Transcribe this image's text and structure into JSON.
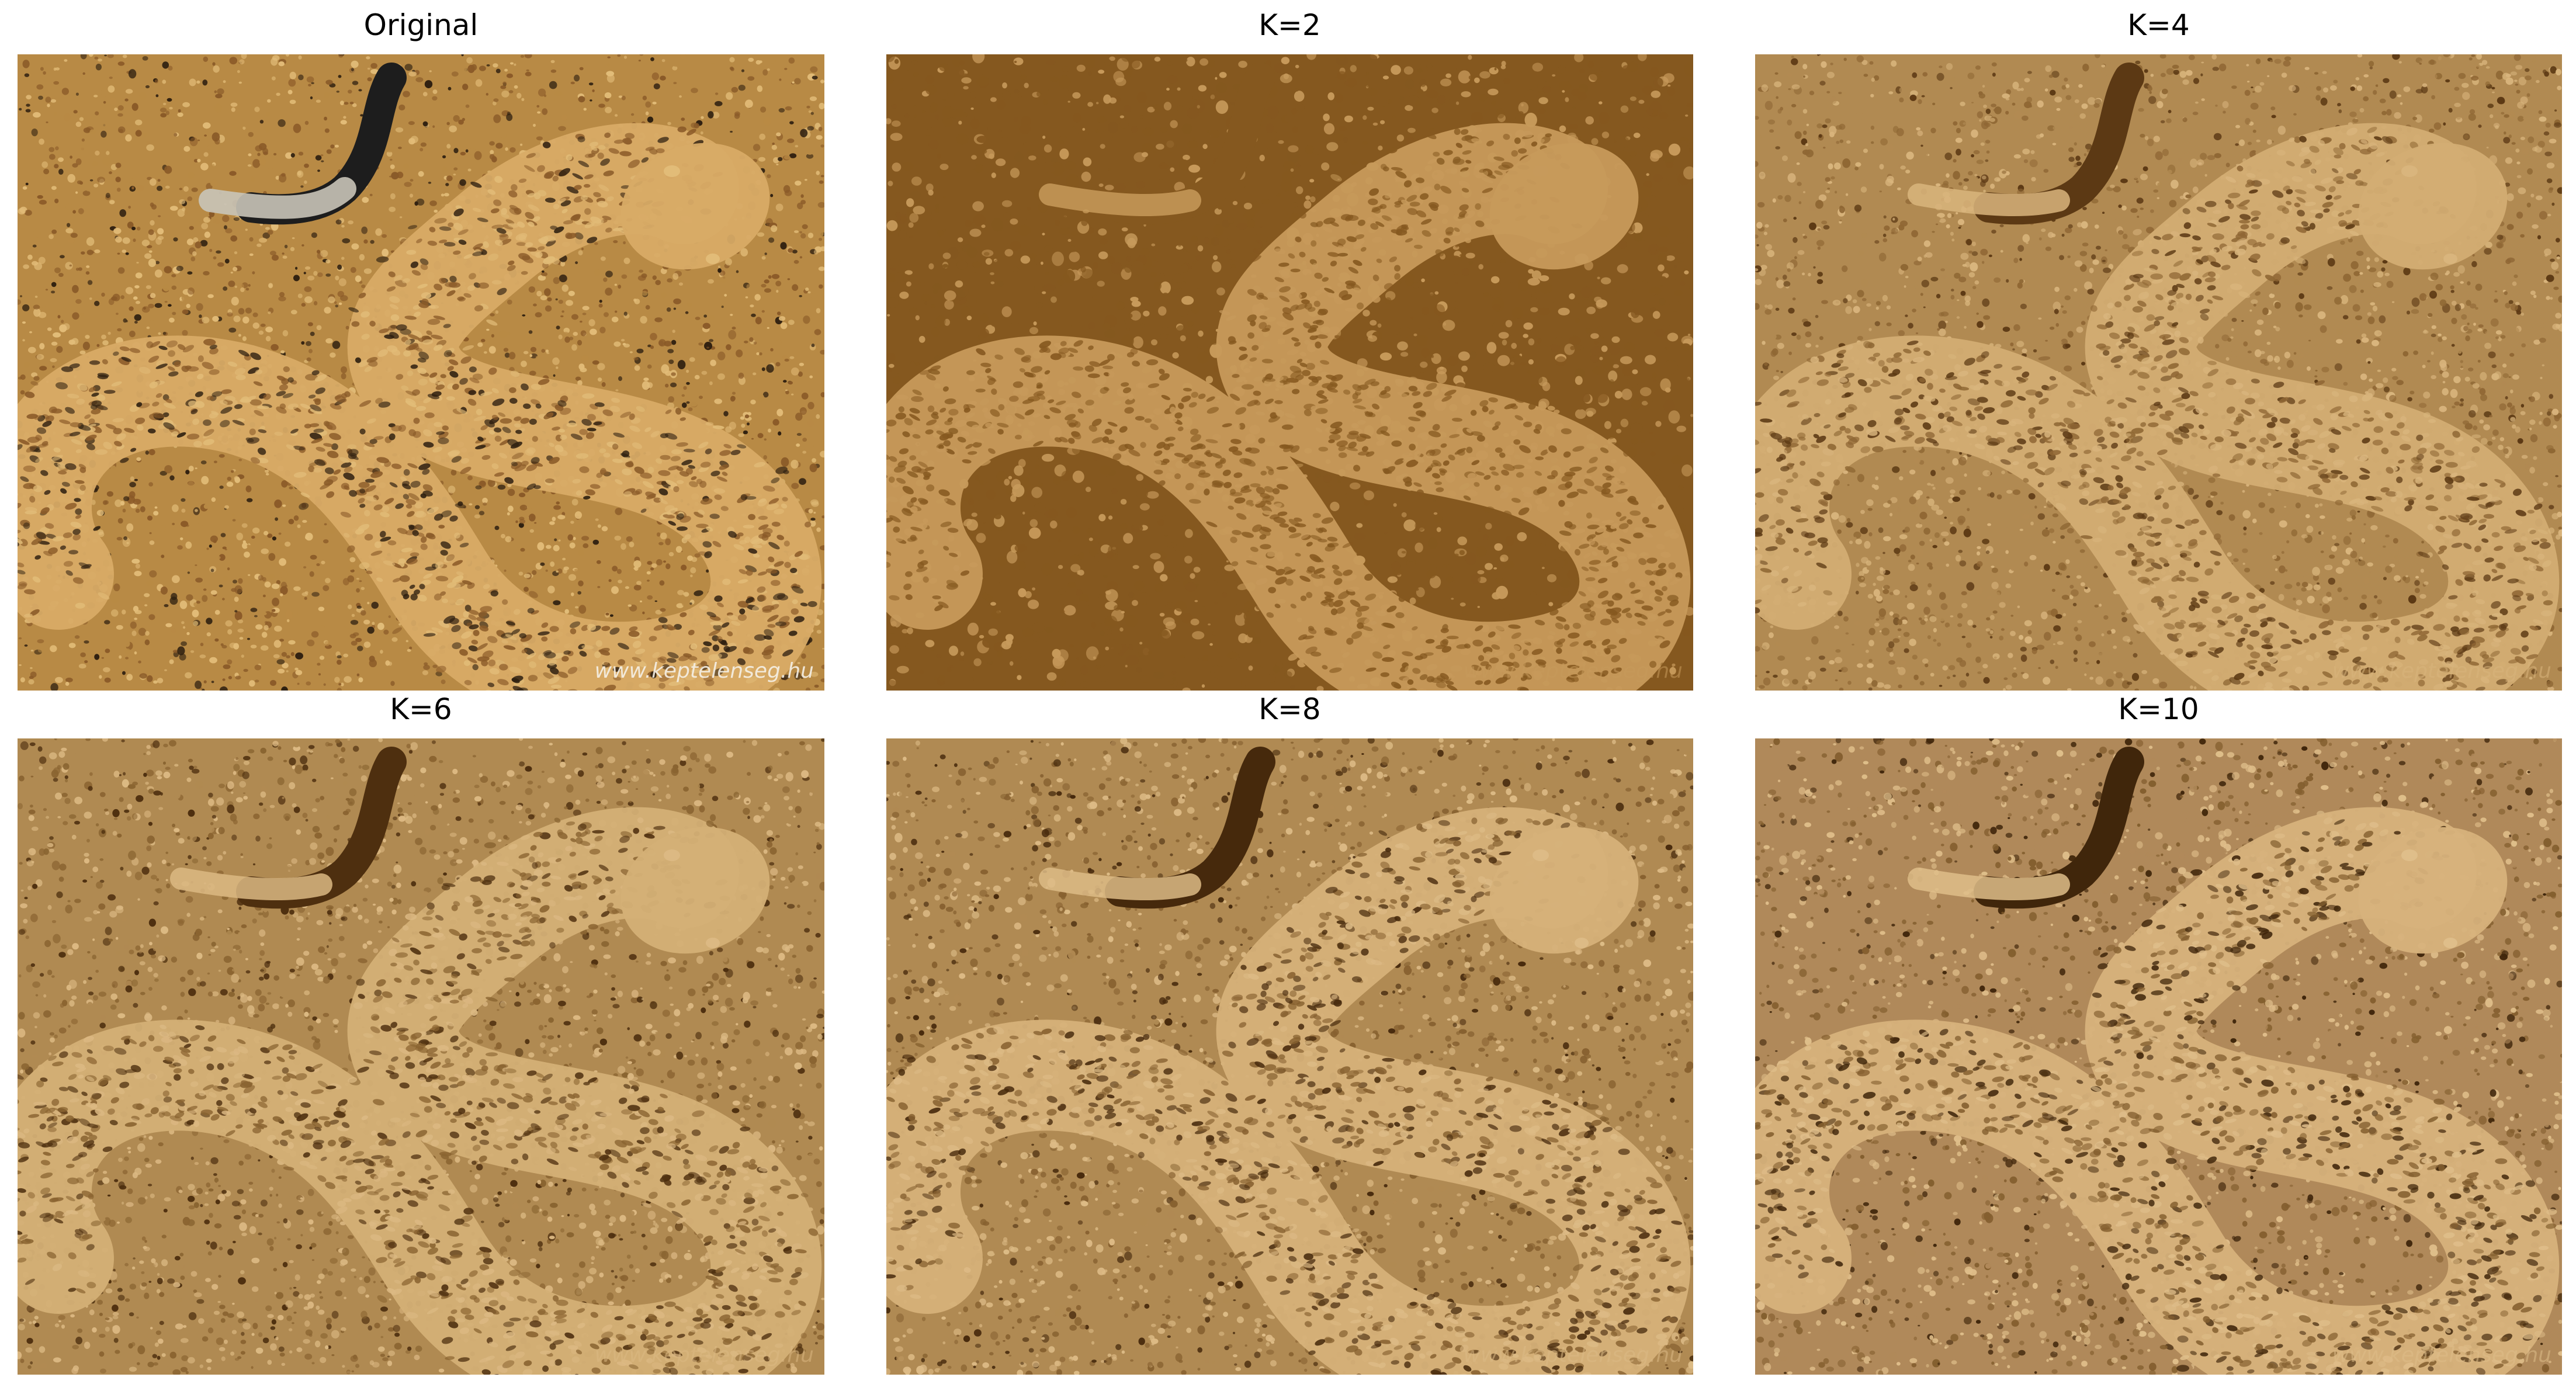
{
  "figure": {
    "panels": [
      {
        "title": "Original",
        "watermark": "www.keptelenseg.hu",
        "palette": {
          "bg": "#b88a45",
          "mid": "#8a5a28",
          "light": "#e2bc78",
          "dark": "#2e1f10",
          "snake": "#d8ab66",
          "shadow": "#1d1d1d"
        }
      },
      {
        "title": "K=2",
        "watermark": "www.keptelenseg.hu",
        "palette": {
          "bg": "#85581f",
          "mid": "#85581f",
          "light": "#c79a5b",
          "dark": "#85581f",
          "snake": "#c79a5b",
          "shadow": "#85581f"
        }
      },
      {
        "title": "K=4",
        "watermark": "www.keptelenseg.hu",
        "palette": {
          "bg": "#b18a52",
          "mid": "#8f6734",
          "light": "#d9b57d",
          "dark": "#5c3914",
          "snake": "#d3ad73",
          "shadow": "#5c3914"
        }
      },
      {
        "title": "K=6",
        "watermark": "www.keptelenseg.hu",
        "palette": {
          "bg": "#b08a52",
          "mid": "#8a6431",
          "light": "#dcb983",
          "dark": "#4e2f0f",
          "snake": "#d4b076",
          "shadow": "#4e2f0f"
        }
      },
      {
        "title": "K=8",
        "watermark": "www.keptelenseg.hu",
        "palette": {
          "bg": "#b08a53",
          "mid": "#876130",
          "light": "#ddbb86",
          "dark": "#46290c",
          "snake": "#d6b179",
          "shadow": "#46290c"
        }
      },
      {
        "title": "K=10",
        "watermark": "www.keptelenseg.hu",
        "palette": {
          "bg": "#b0895a",
          "mid": "#845f2f",
          "light": "#dfbe8a",
          "dark": "#40260b",
          "snake": "#d7b27c",
          "shadow": "#40260b"
        }
      }
    ]
  }
}
